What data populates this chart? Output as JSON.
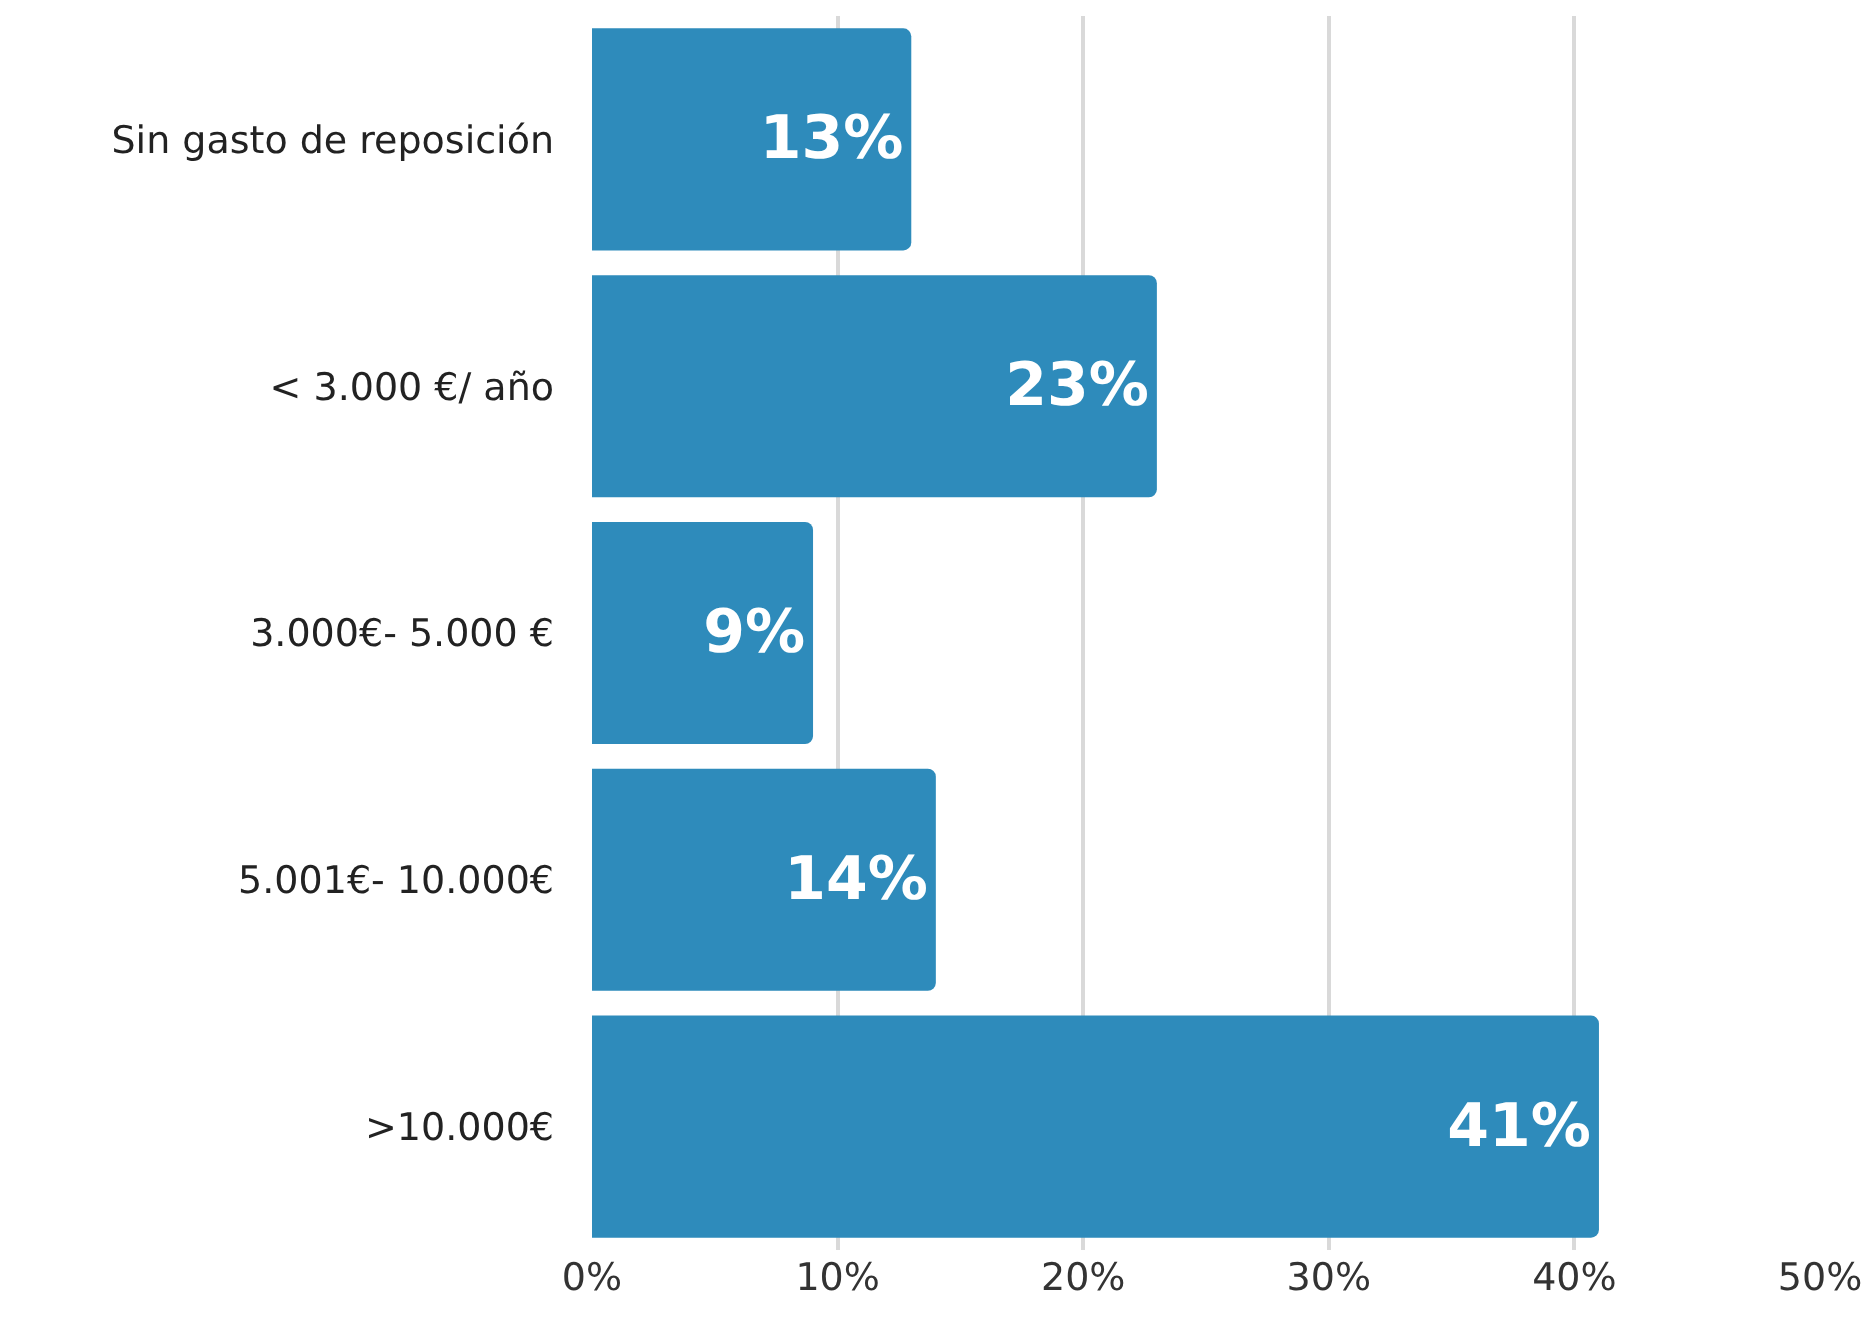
{
  "chart_data": {
    "type": "bar",
    "orientation": "horizontal",
    "categories": [
      "Sin gasto de reposición",
      "< 3.000 €/ año",
      "3.000€- 5.000 €",
      "5.001€- 10.000€",
      ">10.000€"
    ],
    "values": [
      13,
      23,
      9,
      14,
      41
    ],
    "value_labels": [
      "13%",
      "23%",
      "9%",
      "14%",
      "41%"
    ],
    "color": "#2e8bbb",
    "xlim": [
      0,
      50
    ],
    "xticks": [
      {
        "value": 0,
        "label": "0%"
      },
      {
        "value": 10,
        "label": "10%"
      },
      {
        "value": 20,
        "label": "20%"
      },
      {
        "value": 30,
        "label": "30%"
      },
      {
        "value": 40,
        "label": "40%"
      },
      {
        "value": 50,
        "label": "50%"
      }
    ],
    "grid": "x",
    "legend": false
  }
}
